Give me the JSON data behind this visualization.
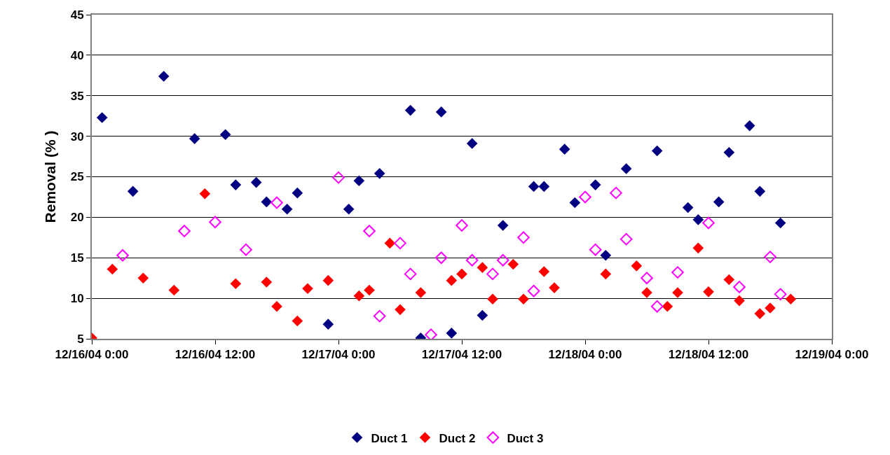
{
  "chart_data": {
    "type": "scatter",
    "ylabel": "Removal (% )",
    "marker": "diamond",
    "grid": "y",
    "legend": "bottom",
    "xlim": [
      "--12-16T00:00",
      "--12-19T00:00"
    ],
    "xticks": [
      {
        "value": "--12-16T00:00",
        "label": "12/16/04 0:00"
      },
      {
        "value": "--12-16T12:00",
        "label": "12/16/04 12:00"
      },
      {
        "value": "--12-17T00:00",
        "label": "12/17/04 0:00"
      },
      {
        "value": "--12-17T12:00",
        "label": "12/17/04 12:00"
      },
      {
        "value": "--12-18T00:00",
        "label": "12/18/04 0:00"
      },
      {
        "value": "--12-18T12:00",
        "label": "12/18/04 12:00"
      },
      {
        "value": "--12-19T00:00",
        "label": "12/19/04 0:00"
      }
    ],
    "ylim": [
      5,
      45
    ],
    "yticks": [
      5,
      10,
      15,
      20,
      25,
      30,
      35,
      40,
      45
    ],
    "series": [
      {
        "name": "Duct 1",
        "color": "#000080",
        "x": [
          "--12-16T01:00",
          "--12-16T04:00",
          "--12-16T07:00",
          "--12-16T10:00",
          "--12-16T13:00",
          "--12-16T14:00",
          "--12-16T16:00",
          "--12-16T17:00",
          "--12-16T19:00",
          "--12-16T20:00",
          "--12-16T23:00",
          "--12-17T01:00",
          "--12-17T02:00",
          "--12-17T04:00",
          "--12-17T07:00",
          "--12-17T08:00",
          "--12-17T10:00",
          "--12-17T11:00",
          "--12-17T13:00",
          "--12-17T14:00",
          "--12-17T16:00",
          "--12-17T19:00",
          "--12-17T20:00",
          "--12-17T22:00",
          "--12-17T23:00",
          "--12-18T01:00",
          "--12-18T02:00",
          "--12-18T04:00",
          "--12-18T07:00",
          "--12-18T10:00",
          "--12-18T11:00",
          "--12-18T13:00",
          "--12-18T14:00",
          "--12-18T16:00",
          "--12-18T17:00",
          "--12-18T19:00"
        ],
        "values": [
          32.3,
          23.2,
          37.4,
          29.7,
          30.2,
          24.0,
          24.3,
          21.9,
          21.0,
          23.0,
          6.8,
          21.0,
          24.5,
          25.4,
          33.2,
          5.1,
          33.0,
          5.7,
          29.1,
          7.9,
          19.0,
          23.8,
          23.8,
          28.4,
          21.8,
          24.0,
          15.3,
          26.0,
          28.2,
          21.2,
          19.7,
          21.9,
          28.0,
          31.3,
          23.2,
          19.3
        ]
      },
      {
        "name": "Duct 2",
        "color": "#ff0000",
        "x": [
          "--12-16T00:00",
          "--12-16T02:00",
          "--12-16T05:00",
          "--12-16T08:00",
          "--12-16T11:00",
          "--12-16T14:00",
          "--12-16T17:00",
          "--12-16T18:00",
          "--12-16T20:00",
          "--12-16T21:00",
          "--12-16T23:00",
          "--12-17T02:00",
          "--12-17T03:00",
          "--12-17T05:00",
          "--12-17T06:00",
          "--12-17T08:00",
          "--12-17T11:00",
          "--12-17T12:00",
          "--12-17T14:00",
          "--12-17T15:00",
          "--12-17T17:00",
          "--12-17T18:00",
          "--12-17T20:00",
          "--12-17T21:00",
          "--12-18T02:00",
          "--12-18T05:00",
          "--12-18T06:00",
          "--12-18T08:00",
          "--12-18T09:00",
          "--12-18T11:00",
          "--12-18T12:00",
          "--12-18T14:00",
          "--12-18T15:00",
          "--12-18T17:00",
          "--12-18T18:00",
          "--12-18T20:00"
        ],
        "values": [
          5.1,
          13.6,
          12.5,
          11.0,
          22.9,
          11.8,
          12.0,
          9.0,
          7.2,
          11.2,
          12.2,
          10.3,
          11.0,
          16.8,
          8.6,
          10.7,
          12.2,
          13.0,
          13.8,
          9.9,
          14.2,
          9.9,
          13.3,
          11.3,
          13.0,
          14.0,
          10.7,
          9.0,
          10.7,
          16.2,
          10.8,
          12.3,
          9.7,
          8.1,
          8.8,
          9.9
        ]
      },
      {
        "name": "Duct 3",
        "color": "#ff00ff",
        "marker": "diamond-open",
        "x": [
          "--12-16T03:00",
          "--12-16T09:00",
          "--12-16T12:00",
          "--12-16T15:00",
          "--12-16T18:00",
          "--12-17T00:00",
          "--12-17T03:00",
          "--12-17T04:00",
          "--12-17T06:00",
          "--12-17T07:00",
          "--12-17T09:00",
          "--12-17T10:00",
          "--12-17T12:00",
          "--12-17T13:00",
          "--12-17T15:00",
          "--12-17T16:00",
          "--12-17T18:00",
          "--12-17T19:00",
          "--12-18T00:00",
          "--12-18T01:00",
          "--12-18T03:00",
          "--12-18T04:00",
          "--12-18T06:00",
          "--12-18T07:00",
          "--12-18T09:00",
          "--12-18T12:00",
          "--12-18T15:00",
          "--12-18T18:00",
          "--12-18T19:00"
        ],
        "values": [
          15.3,
          18.3,
          19.4,
          16.0,
          21.8,
          24.9,
          18.3,
          7.8,
          16.8,
          13.0,
          5.5,
          15.0,
          19.0,
          14.7,
          13.0,
          14.7,
          17.5,
          10.9,
          22.5,
          16.0,
          23.0,
          17.3,
          12.5,
          9.0,
          13.2,
          19.3,
          11.4,
          15.1,
          10.5
        ]
      }
    ]
  }
}
